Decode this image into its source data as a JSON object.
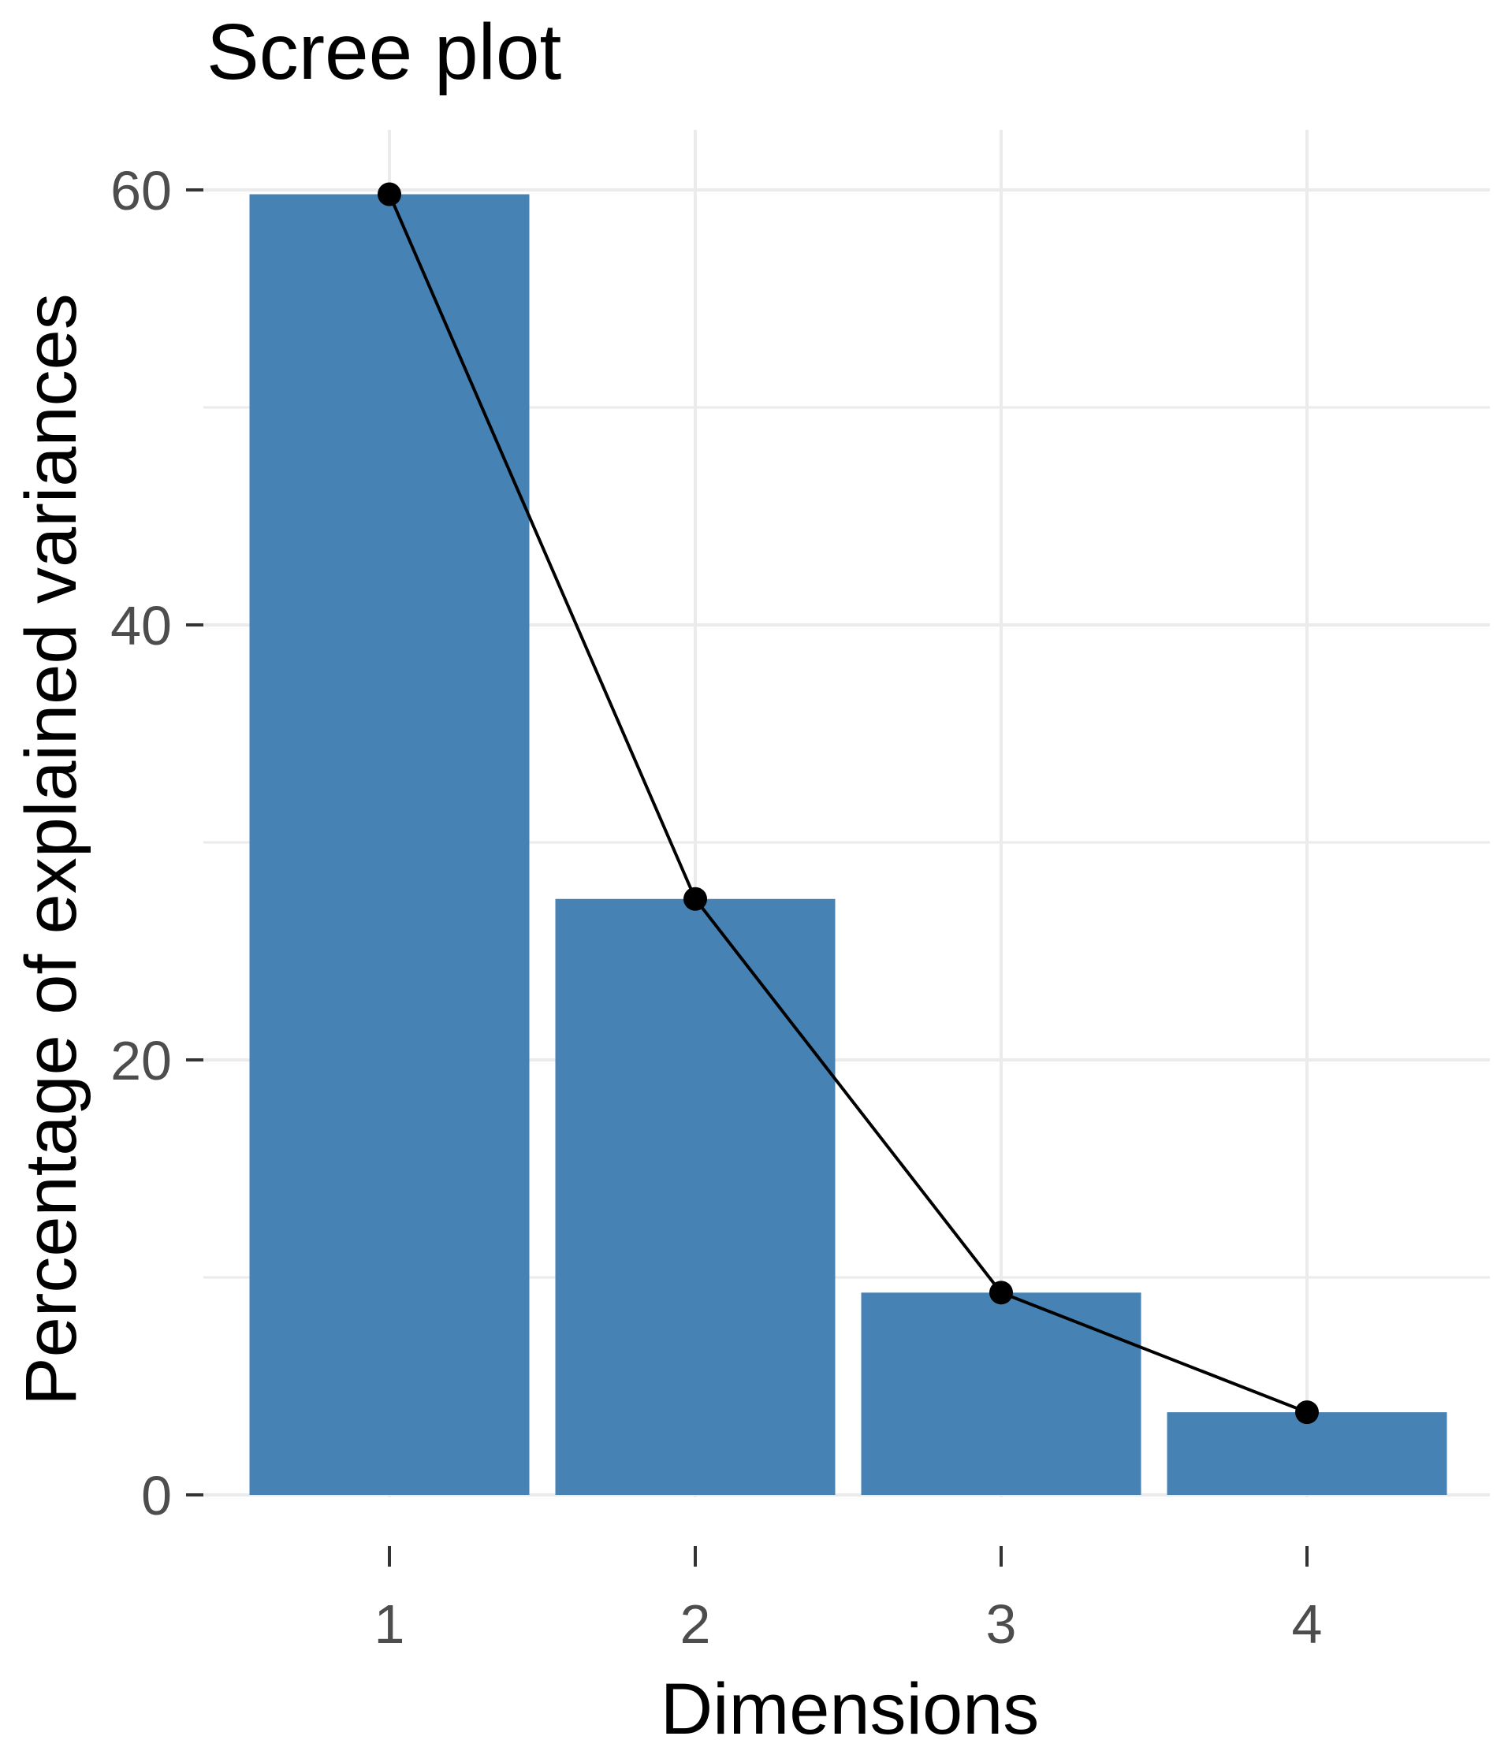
{
  "chart_data": {
    "type": "bar",
    "title": "Scree plot",
    "xlabel": "Dimensions",
    "ylabel": "Percentage of explained variances",
    "categories": [
      "1",
      "2",
      "3",
      "4"
    ],
    "values": [
      59.8,
      27.4,
      9.3,
      3.8
    ],
    "line_overlay": true,
    "ylim": [
      0,
      60
    ],
    "yticks": [
      0,
      20,
      40,
      60
    ],
    "yticks_labels": [
      "0",
      "20",
      "40",
      "60"
    ],
    "grid": true,
    "legend": "none",
    "colors": {
      "bar": "#4682B4",
      "line": "#000000",
      "point": "#000000",
      "grid": "#EBEBEB",
      "tick_text": "#4D4D4D",
      "background": "#FFFFFF"
    }
  }
}
